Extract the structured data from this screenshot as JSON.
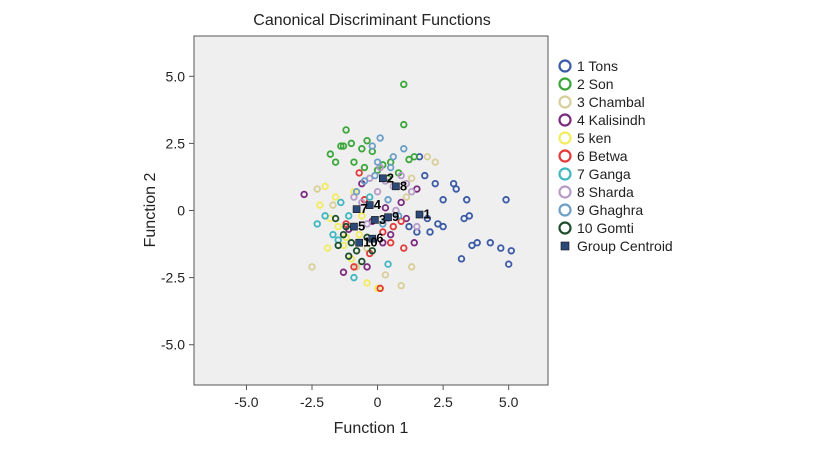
{
  "chart_data": {
    "type": "scatter",
    "title": "Canonical Discriminant Functions",
    "xlabel": "Function 1",
    "ylabel": "Function 2",
    "xlim": [
      -7.0,
      6.5
    ],
    "ylim": [
      -6.5,
      6.5
    ],
    "xticks": [
      "-5.0",
      "-2.5",
      "0",
      "2.5",
      "5.0"
    ],
    "yticks": [
      "5.0",
      "2.5",
      "0",
      "-2.5",
      "-5.0"
    ],
    "xtick_values": [
      -5.0,
      -2.5,
      0,
      2.5,
      5.0
    ],
    "ytick_values": [
      5.0,
      2.5,
      0,
      -2.5,
      -5.0
    ],
    "grid": false,
    "legend_position": "right",
    "background": "#efefef",
    "series": [
      {
        "name": "1 Tons",
        "color": "#3b5aa6",
        "points": [
          [
            1.6,
            2.0
          ],
          [
            1.8,
            1.3
          ],
          [
            2.2,
            1.0
          ],
          [
            2.5,
            0.4
          ],
          [
            2.9,
            1.0
          ],
          [
            3.0,
            0.8
          ],
          [
            3.4,
            0.4
          ],
          [
            3.5,
            -0.2
          ],
          [
            3.3,
            -0.3
          ],
          [
            2.3,
            -0.5
          ],
          [
            2.5,
            -0.6
          ],
          [
            3.6,
            -1.3
          ],
          [
            3.8,
            -1.2
          ],
          [
            4.3,
            -1.2
          ],
          [
            4.7,
            -1.4
          ],
          [
            5.1,
            -1.5
          ],
          [
            5.0,
            -2.0
          ],
          [
            3.2,
            -1.8
          ],
          [
            4.9,
            0.4
          ],
          [
            1.9,
            -0.3
          ],
          [
            2.0,
            -0.8
          ],
          [
            1.5,
            -0.8
          ],
          [
            1.2,
            -0.6
          ]
        ]
      },
      {
        "name": "2 Son",
        "color": "#3aa63a",
        "points": [
          [
            1.0,
            4.7
          ],
          [
            1.0,
            3.2
          ],
          [
            -1.2,
            3.0
          ],
          [
            -1.4,
            2.4
          ],
          [
            -1.8,
            2.1
          ],
          [
            -1.6,
            1.8
          ],
          [
            -1.0,
            2.5
          ],
          [
            -0.6,
            2.3
          ],
          [
            -0.9,
            1.8
          ],
          [
            -0.2,
            2.2
          ],
          [
            -0.5,
            1.6
          ],
          [
            0.2,
            1.7
          ],
          [
            0.5,
            1.8
          ],
          [
            1.2,
            1.9
          ],
          [
            1.4,
            2.0
          ],
          [
            0.0,
            1.5
          ],
          [
            0.8,
            1.4
          ],
          [
            -1.3,
            2.4
          ],
          [
            -0.4,
            2.6
          ],
          [
            0.4,
            1.2
          ]
        ]
      },
      {
        "name": "3 Chambal",
        "color": "#d8cf98",
        "points": [
          [
            1.9,
            2.0
          ],
          [
            2.2,
            1.8
          ],
          [
            -2.5,
            -2.1
          ],
          [
            0.9,
            -2.8
          ],
          [
            1.3,
            -2.1
          ],
          [
            -2.3,
            0.8
          ],
          [
            -0.8,
            -2.1
          ],
          [
            0.3,
            -2.4
          ],
          [
            1.1,
            0.5
          ],
          [
            -1.7,
            0.2
          ],
          [
            1.3,
            1.2
          ],
          [
            -0.4,
            -1.4
          ]
        ]
      },
      {
        "name": "4 Kalisindh",
        "color": "#7b2a80",
        "points": [
          [
            -2.8,
            0.6
          ],
          [
            -1.3,
            -2.3
          ],
          [
            -0.4,
            -2.1
          ],
          [
            1.4,
            -1.2
          ],
          [
            1.5,
            0.8
          ],
          [
            0.3,
            0.1
          ],
          [
            -0.2,
            -0.4
          ],
          [
            0.5,
            -0.9
          ],
          [
            -0.6,
            1.0
          ],
          [
            0.9,
            0.3
          ],
          [
            -1.1,
            -0.7
          ],
          [
            1.1,
            -0.3
          ],
          [
            0.2,
            -1.2
          ]
        ]
      },
      {
        "name": "5 ken",
        "color": "#f2ec5c",
        "points": [
          [
            -2.0,
            0.9
          ],
          [
            -2.2,
            0.2
          ],
          [
            -1.8,
            -0.3
          ],
          [
            -1.5,
            -0.6
          ],
          [
            -1.2,
            -1.0
          ],
          [
            -1.9,
            -1.4
          ],
          [
            -1.0,
            -1.8
          ],
          [
            -0.6,
            -0.2
          ],
          [
            0.0,
            -2.9
          ],
          [
            -0.4,
            -2.7
          ],
          [
            -1.6,
            0.5
          ],
          [
            -0.9,
            0.7
          ],
          [
            -1.3,
            -1.3
          ],
          [
            -0.7,
            -0.9
          ]
        ]
      },
      {
        "name": "6 Betwa",
        "color": "#e03a3a",
        "points": [
          [
            0.1,
            -2.9
          ],
          [
            -0.7,
            1.4
          ],
          [
            -0.9,
            -2.1
          ],
          [
            0.9,
            -0.4
          ],
          [
            0.5,
            -1.2
          ],
          [
            -0.3,
            -1.6
          ],
          [
            1.0,
            -1.4
          ],
          [
            0.6,
            -0.6
          ],
          [
            -0.5,
            0.4
          ],
          [
            0.2,
            -0.8
          ],
          [
            -1.2,
            -0.5
          ]
        ]
      },
      {
        "name": "7 Ganga",
        "color": "#3fb6c0",
        "points": [
          [
            -2.3,
            -0.5
          ],
          [
            -1.7,
            -0.9
          ],
          [
            -1.1,
            -0.2
          ],
          [
            -0.9,
            -2.5
          ],
          [
            -1.4,
            0.3
          ],
          [
            -0.3,
            0.5
          ],
          [
            -1.5,
            -1.1
          ],
          [
            0.4,
            -2.0
          ],
          [
            -2.0,
            -0.2
          ]
        ]
      },
      {
        "name": "8 Sharda",
        "color": "#b79bc9",
        "points": [
          [
            1.1,
            1.0
          ],
          [
            1.3,
            0.7
          ],
          [
            0.9,
            1.3
          ],
          [
            0.6,
            0.9
          ],
          [
            0.3,
            1.1
          ],
          [
            0.0,
            0.7
          ],
          [
            -0.3,
            1.2
          ],
          [
            -0.6,
            0.3
          ],
          [
            -0.4,
            -0.5
          ],
          [
            0.7,
            0.0
          ],
          [
            0.1,
            1.6
          ],
          [
            1.5,
            -0.6
          ],
          [
            -0.9,
            0.5
          ],
          [
            0.4,
            -0.3
          ]
        ]
      },
      {
        "name": "9 Ghaghra",
        "color": "#6b9fc7",
        "points": [
          [
            1.0,
            2.3
          ],
          [
            0.6,
            2.0
          ],
          [
            -0.2,
            2.4
          ],
          [
            0.0,
            1.8
          ],
          [
            -0.5,
            1.1
          ],
          [
            -0.8,
            0.7
          ],
          [
            0.4,
            0.4
          ],
          [
            0.8,
            -0.2
          ],
          [
            0.2,
            -0.5
          ],
          [
            -0.3,
            0.2
          ],
          [
            0.5,
            1.6
          ],
          [
            -0.1,
            1.3
          ],
          [
            0.1,
            2.7
          ]
        ]
      },
      {
        "name": "10 Gomti",
        "color": "#1d4d2a",
        "points": [
          [
            -1.6,
            -0.3
          ],
          [
            -1.2,
            -0.6
          ],
          [
            -1.0,
            -1.2
          ],
          [
            -1.5,
            -1.3
          ],
          [
            -0.8,
            -1.5
          ],
          [
            -0.6,
            -1.9
          ],
          [
            -0.2,
            -1.5
          ],
          [
            -1.1,
            -1.7
          ],
          [
            -0.4,
            -1.0
          ],
          [
            -1.3,
            -0.9
          ]
        ]
      }
    ],
    "centroids": {
      "name": "Group Centroid",
      "color": "#2c4a78",
      "points": [
        {
          "label": "1",
          "x": 1.6,
          "y": -0.15
        },
        {
          "label": "2",
          "x": 0.2,
          "y": 1.2
        },
        {
          "label": "3",
          "x": -0.1,
          "y": -0.35
        },
        {
          "label": "4",
          "x": -0.3,
          "y": 0.2
        },
        {
          "label": "5",
          "x": -0.9,
          "y": -0.6
        },
        {
          "label": "6",
          "x": -0.2,
          "y": -1.05
        },
        {
          "label": "7",
          "x": -0.8,
          "y": 0.05
        },
        {
          "label": "8",
          "x": 0.7,
          "y": 0.9
        },
        {
          "label": "9",
          "x": 0.4,
          "y": -0.25
        },
        {
          "label": "10",
          "x": -0.7,
          "y": -1.2
        }
      ]
    }
  }
}
